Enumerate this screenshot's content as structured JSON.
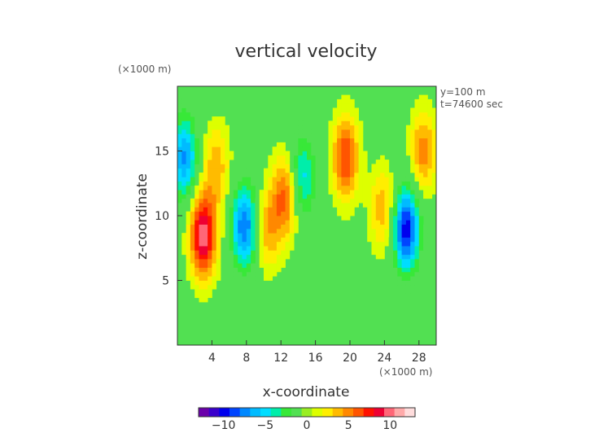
{
  "chart_data": {
    "type": "heatmap",
    "title": "vertical velocity",
    "xlabel": "x-coordinate",
    "ylabel": "z-coordinate",
    "x_unit": "(×1000 m)",
    "y_unit": "(×1000 m)",
    "annotations": [
      "y=100 m",
      "t=74600 sec"
    ],
    "xlim": [
      0,
      30
    ],
    "ylim": [
      0,
      20
    ],
    "x_ticks": [
      4,
      8,
      12,
      16,
      20,
      24,
      28
    ],
    "y_ticks": [
      5,
      10,
      15
    ],
    "x_tick_labels": [
      "4",
      "8",
      "12",
      "16",
      "20",
      "24",
      "28"
    ],
    "y_tick_labels": [
      "5",
      "10",
      "15"
    ],
    "colorbar": {
      "ticks": [
        -10,
        -5,
        0,
        5,
        10
      ],
      "tick_labels": [
        "−10",
        "−5",
        "0",
        "5",
        "10"
      ],
      "range": [
        -13,
        13
      ]
    },
    "features": [
      {
        "x": 3.0,
        "y": 8.5,
        "value": 10
      },
      {
        "x": 7.8,
        "y": 9.2,
        "value": -8
      },
      {
        "x": 10.5,
        "y": 9.0,
        "value": 4
      },
      {
        "x": 12.5,
        "y": 11.5,
        "value": 6
      },
      {
        "x": 14.5,
        "y": 13.0,
        "value": -5
      },
      {
        "x": 19.5,
        "y": 14.5,
        "value": 7
      },
      {
        "x": 23.8,
        "y": 10.5,
        "value": 4
      },
      {
        "x": 26.5,
        "y": 9.0,
        "value": -10
      },
      {
        "x": 28.5,
        "y": 15.0,
        "value": 5
      },
      {
        "x": 0.8,
        "y": 14.5,
        "value": -7
      },
      {
        "x": 4.5,
        "y": 13.8,
        "value": 4
      }
    ]
  },
  "colors": {
    "background_field": "#52e052",
    "palette": [
      "#6a00aa",
      "#3a00cc",
      "#0000ee",
      "#0044ff",
      "#0088ff",
      "#00bbff",
      "#00ddff",
      "#00eeaa",
      "#38e838",
      "#52e052",
      "#99ee22",
      "#ddff00",
      "#ffee00",
      "#ffbb00",
      "#ff8800",
      "#ff5500",
      "#ff1100",
      "#ee0033",
      "#ff6677",
      "#ffaaaa",
      "#ffdddd"
    ]
  }
}
